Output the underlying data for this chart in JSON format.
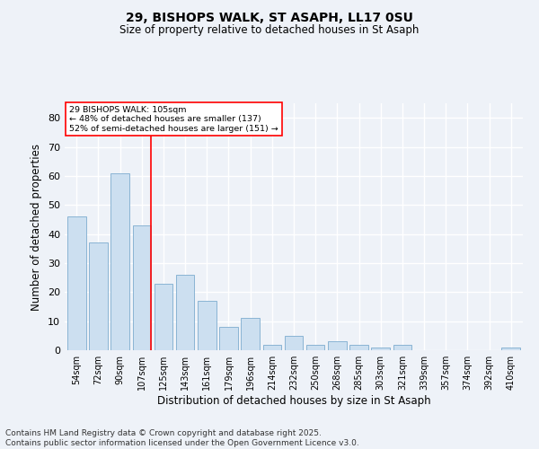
{
  "title1": "29, BISHOPS WALK, ST ASAPH, LL17 0SU",
  "title2": "Size of property relative to detached houses in St Asaph",
  "xlabel": "Distribution of detached houses by size in St Asaph",
  "ylabel": "Number of detached properties",
  "bar_labels": [
    "54sqm",
    "72sqm",
    "90sqm",
    "107sqm",
    "125sqm",
    "143sqm",
    "161sqm",
    "179sqm",
    "196sqm",
    "214sqm",
    "232sqm",
    "250sqm",
    "268sqm",
    "285sqm",
    "303sqm",
    "321sqm",
    "339sqm",
    "357sqm",
    "374sqm",
    "392sqm",
    "410sqm"
  ],
  "bar_values": [
    46,
    37,
    61,
    43,
    23,
    26,
    17,
    8,
    11,
    2,
    5,
    2,
    3,
    2,
    1,
    2,
    0,
    0,
    0,
    0,
    1
  ],
  "bar_color": "#ccdff0",
  "bar_edge_color": "#8ab4d4",
  "vline_index": 3,
  "vline_color": "red",
  "annotation_text": "29 BISHOPS WALK: 105sqm\n← 48% of detached houses are smaller (137)\n52% of semi-detached houses are larger (151) →",
  "annotation_box_color": "white",
  "annotation_box_edge": "red",
  "ylim": [
    0,
    85
  ],
  "yticks": [
    0,
    10,
    20,
    30,
    40,
    50,
    60,
    70,
    80
  ],
  "background_color": "#eef2f8",
  "grid_color": "white",
  "footnote": "Contains HM Land Registry data © Crown copyright and database right 2025.\nContains public sector information licensed under the Open Government Licence v3.0.",
  "footnote_fontsize": 6.5,
  "title1_fontsize": 10,
  "title2_fontsize": 8.5
}
